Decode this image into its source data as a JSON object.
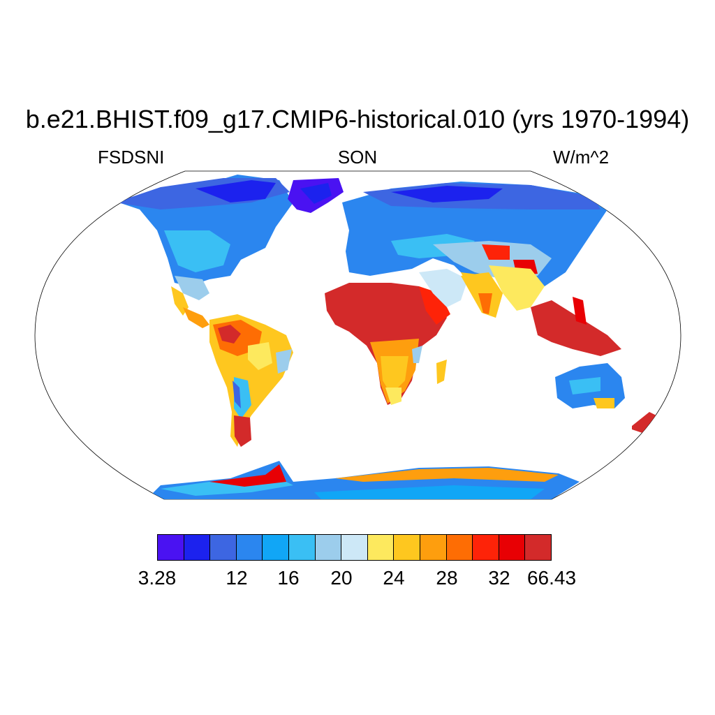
{
  "header": {
    "title": "b.e21.BHIST.f09_g17.CMIP6-historical.010 (yrs 1970-1994)",
    "variable": "FSDSNI",
    "season": "SON",
    "units": "W/m^2"
  },
  "map": {
    "projection": "Robinson",
    "continent_outlines": true,
    "ocean_fill": "none"
  },
  "colorbar": {
    "colors": [
      "#4a12f2",
      "#1c22ee",
      "#3d66e2",
      "#2b86ef",
      "#11a6f6",
      "#3abff4",
      "#9ccdec",
      "#cde8f7",
      "#fde95e",
      "#fec71f",
      "#fe9e0e",
      "#fe6d04",
      "#fe2308",
      "#e80004",
      "#d32a2a"
    ],
    "labels": [
      "3.28",
      "12",
      "16",
      "20",
      "24",
      "28",
      "32",
      "66.43"
    ]
  },
  "regions": {
    "warm_max": "Sahara, Arabia, Maritime Continent, Antarctic coast",
    "cold_min": "Arctic, Greenland, Siberia"
  }
}
